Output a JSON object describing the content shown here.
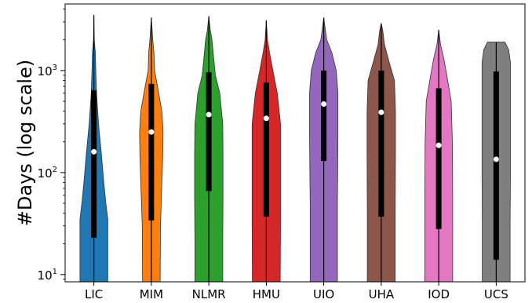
{
  "chart_data": {
    "type": "violin",
    "title": "",
    "xlabel": "",
    "ylabel": "#Days (log scale)",
    "yscale": "log",
    "ylim": [
      8.5,
      4500
    ],
    "yticks": [
      {
        "value": 10,
        "base": "10",
        "exp": "1"
      },
      {
        "value": 100,
        "base": "10",
        "exp": "2"
      },
      {
        "value": 1000,
        "base": "10",
        "exp": "3"
      }
    ],
    "grid": false,
    "categories": [
      "LIC",
      "MIM",
      "NLMR",
      "HMU",
      "UIO",
      "UHA",
      "IOD",
      "UCS"
    ],
    "series": [
      {
        "category": "LIC",
        "color": "#1f77b4",
        "min": 8.5,
        "max": 3500,
        "q1": 23,
        "median": 160,
        "q3": 640,
        "density": [
          [
            8.5,
            0.95
          ],
          [
            20,
            0.95
          ],
          [
            35,
            0.95
          ],
          [
            50,
            0.82
          ],
          [
            80,
            0.68
          ],
          [
            150,
            0.52
          ],
          [
            300,
            0.32
          ],
          [
            600,
            0.18
          ],
          [
            1000,
            0.13
          ],
          [
            1500,
            0.1
          ],
          [
            2000,
            0.03
          ],
          [
            3500,
            0.0
          ]
        ]
      },
      {
        "category": "MIM",
        "color": "#ff7f0e",
        "min": 8.5,
        "max": 3300,
        "q1": 34,
        "median": 250,
        "q3": 740,
        "density": [
          [
            8.5,
            0.6
          ],
          [
            30,
            0.62
          ],
          [
            80,
            0.72
          ],
          [
            150,
            0.78
          ],
          [
            250,
            0.8
          ],
          [
            400,
            0.72
          ],
          [
            700,
            0.42
          ],
          [
            1000,
            0.22
          ],
          [
            1500,
            0.18
          ],
          [
            2000,
            0.1
          ],
          [
            3300,
            0.0
          ]
        ]
      },
      {
        "category": "NLMR",
        "color": "#2ca02c",
        "min": 8.5,
        "max": 3400,
        "q1": 66,
        "median": 370,
        "q3": 960,
        "density": [
          [
            8.5,
            0.95
          ],
          [
            20,
            0.95
          ],
          [
            60,
            0.97
          ],
          [
            150,
            0.97
          ],
          [
            300,
            0.95
          ],
          [
            600,
            0.75
          ],
          [
            900,
            0.45
          ],
          [
            1500,
            0.3
          ],
          [
            2000,
            0.22
          ],
          [
            2500,
            0.1
          ],
          [
            3400,
            0.0
          ]
        ]
      },
      {
        "category": "HMU",
        "color": "#d62728",
        "min": 8.5,
        "max": 3100,
        "q1": 37,
        "median": 340,
        "q3": 760,
        "density": [
          [
            8.5,
            0.95
          ],
          [
            30,
            0.97
          ],
          [
            100,
            0.97
          ],
          [
            300,
            0.97
          ],
          [
            600,
            0.75
          ],
          [
            1000,
            0.45
          ],
          [
            1500,
            0.22
          ],
          [
            2000,
            0.08
          ],
          [
            3100,
            0.0
          ]
        ]
      },
      {
        "category": "UIO",
        "color": "#9467bd",
        "min": 8.5,
        "max": 3300,
        "q1": 130,
        "median": 470,
        "q3": 1000,
        "density": [
          [
            8.5,
            0.93
          ],
          [
            50,
            0.93
          ],
          [
            100,
            0.95
          ],
          [
            250,
            0.97
          ],
          [
            600,
            0.97
          ],
          [
            1000,
            0.85
          ],
          [
            1500,
            0.55
          ],
          [
            2000,
            0.2
          ],
          [
            3300,
            0.0
          ]
        ]
      },
      {
        "category": "UHA",
        "color": "#8c564b",
        "min": 8.5,
        "max": 2900,
        "q1": 37,
        "median": 390,
        "q3": 1000,
        "density": [
          [
            8.5,
            0.95
          ],
          [
            40,
            0.95
          ],
          [
            150,
            0.97
          ],
          [
            400,
            0.97
          ],
          [
            800,
            0.9
          ],
          [
            1200,
            0.55
          ],
          [
            1800,
            0.22
          ],
          [
            2500,
            0.1
          ],
          [
            2900,
            0.0
          ]
        ]
      },
      {
        "category": "IOD",
        "color": "#e377c2",
        "min": 8.5,
        "max": 2500,
        "q1": 28,
        "median": 185,
        "q3": 670,
        "density": [
          [
            8.5,
            0.95
          ],
          [
            20,
            0.95
          ],
          [
            60,
            0.95
          ],
          [
            200,
            0.93
          ],
          [
            500,
            0.85
          ],
          [
            900,
            0.55
          ],
          [
            1300,
            0.35
          ],
          [
            1800,
            0.12
          ],
          [
            2500,
            0.0
          ]
        ]
      },
      {
        "category": "UCS",
        "color": "#7f7f7f",
        "min": 8.5,
        "max": 1900,
        "q1": 14,
        "median": 135,
        "q3": 980,
        "density": [
          [
            8.5,
            0.95
          ],
          [
            30,
            0.95
          ],
          [
            100,
            0.97
          ],
          [
            300,
            0.97
          ],
          [
            700,
            0.97
          ],
          [
            1200,
            0.97
          ],
          [
            1600,
            0.85
          ],
          [
            1900,
            0.6
          ]
        ]
      }
    ]
  }
}
